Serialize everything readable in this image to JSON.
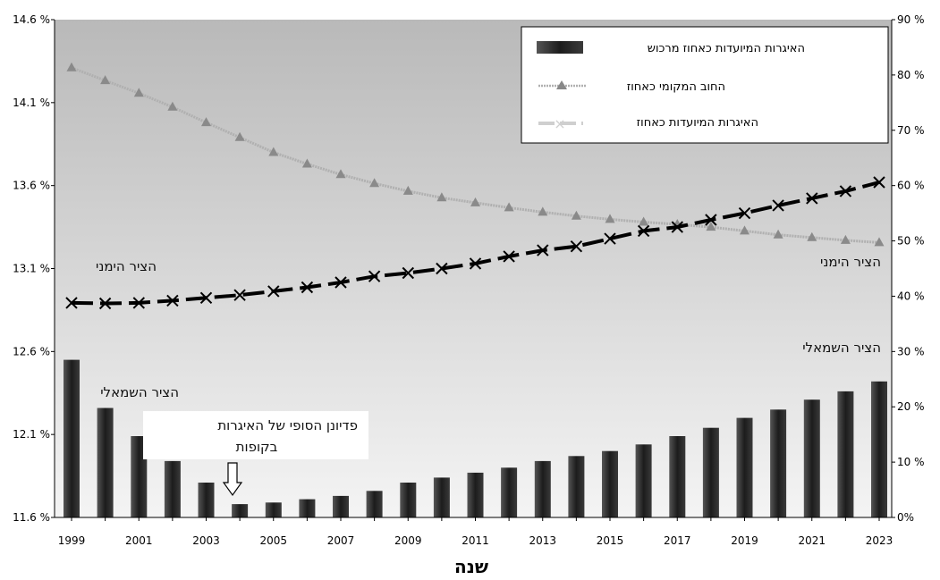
{
  "chart_data": {
    "type": "bar",
    "xlabel": "שנה",
    "x": [
      1999,
      2000,
      2001,
      2002,
      2003,
      2004,
      2005,
      2006,
      2007,
      2008,
      2009,
      2010,
      2011,
      2012,
      2013,
      2014,
      2015,
      2016,
      2017,
      2018,
      2019,
      2020,
      2021,
      2022,
      2023
    ],
    "x_tick_labels": [
      "1999",
      "2001",
      "2003",
      "2005",
      "2007",
      "2009",
      "2011",
      "2013",
      "2015",
      "2017",
      "2019",
      "2021",
      "2023"
    ],
    "left_axis": {
      "ylim": [
        11.6,
        14.6
      ],
      "tick_labels": [
        "11.6 %",
        "12.1 %",
        "12.6 %",
        "13.1 %",
        "13.6 %",
        "14.1 %",
        "14.6 %"
      ]
    },
    "right_axis": {
      "ylim": [
        0,
        90
      ],
      "tick_labels": [
        "0%",
        "10 %",
        "20 %",
        "30 %",
        "40 %",
        "50 %",
        "60 %",
        "70 %",
        "80 %",
        "90 %"
      ]
    },
    "series": [
      {
        "name": "האיגרות המיועדות כאחוז מרכוש",
        "type": "bar",
        "axis": "left",
        "values": [
          12.55,
          12.26,
          12.09,
          11.94,
          11.81,
          11.68,
          11.69,
          11.71,
          11.73,
          11.76,
          11.81,
          11.84,
          11.87,
          11.9,
          11.94,
          11.97,
          12.0,
          12.04,
          12.09,
          12.14,
          12.2,
          12.25,
          12.31,
          12.36,
          12.42
        ]
      },
      {
        "name": "החוב המקומי כאחוז",
        "type": "line",
        "marker": "triangle",
        "axis": "right",
        "values": [
          81.3,
          79.0,
          76.7,
          74.2,
          71.4,
          68.7,
          66.0,
          63.9,
          62.0,
          60.4,
          59.0,
          57.8,
          56.9,
          56.0,
          55.2,
          54.5,
          53.9,
          53.4,
          53.0,
          52.5,
          51.8,
          51.1,
          50.6,
          50.1,
          49.7
        ]
      },
      {
        "name": "האיגרות המיועדות כאחוז",
        "type": "line",
        "marker": "x",
        "axis": "right",
        "values": [
          38.8,
          38.7,
          38.8,
          39.2,
          39.7,
          40.2,
          40.9,
          41.6,
          42.5,
          43.6,
          44.2,
          45.0,
          45.9,
          47.2,
          48.3,
          49.0,
          50.4,
          51.8,
          52.5,
          53.8,
          55.0,
          56.4,
          57.7,
          59.0,
          60.6
        ]
      }
    ],
    "annotations": {
      "right_axis_top": "הציר הימני",
      "right_axis_right": "הציר הימני",
      "left_axis_right": "הציר השמאלי",
      "left_axis_left": "הציר השמאלי",
      "final_redemption": "פדיונן הסופי של האיגרות\nבקופות"
    },
    "colors": {
      "bar": "#2b2b2b",
      "triangle_line": "#b0b0b0",
      "x_line": "#000000",
      "plot_bg_top": "#b9b9b9",
      "plot_bg_bottom": "#f4f4f4"
    },
    "legend_position": "top-right",
    "grid": false
  }
}
